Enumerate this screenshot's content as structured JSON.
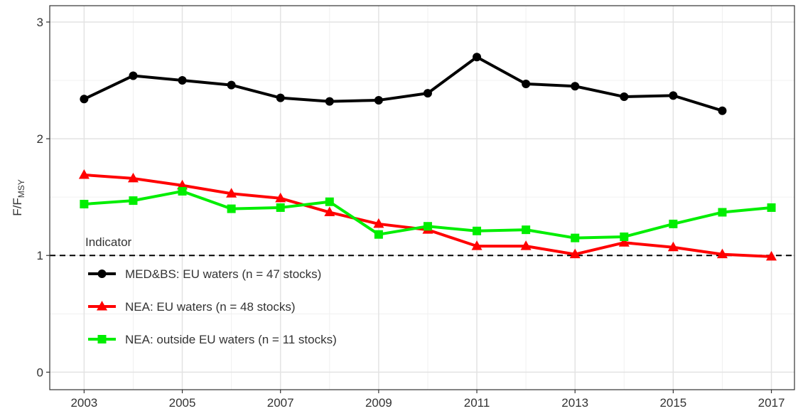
{
  "chart_data": {
    "type": "line",
    "ylabel": "F/F",
    "ylabel_sub": "MSY",
    "legend_title": "Indicator",
    "legend_position": "bottom-left-inside",
    "x": [
      2003,
      2004,
      2005,
      2006,
      2007,
      2008,
      2009,
      2010,
      2011,
      2012,
      2013,
      2014,
      2015,
      2016,
      2017
    ],
    "series": [
      {
        "name": "MED&BS: EU waters (n = 47 stocks)",
        "color": "#000000",
        "marker": "circle",
        "values": [
          2.34,
          2.54,
          2.5,
          2.46,
          2.35,
          2.32,
          2.33,
          2.39,
          2.7,
          2.47,
          2.45,
          2.36,
          2.37,
          2.24,
          null
        ]
      },
      {
        "name": "NEA: EU waters (n = 48 stocks)",
        "color": "#ff0000",
        "marker": "triangle",
        "values": [
          1.69,
          1.66,
          1.6,
          1.53,
          1.49,
          1.37,
          1.27,
          1.22,
          1.08,
          1.08,
          1.01,
          1.11,
          1.07,
          1.01,
          0.99
        ]
      },
      {
        "name": "NEA: outside EU waters (n = 11 stocks)",
        "color": "#00ee00",
        "marker": "square",
        "values": [
          1.44,
          1.47,
          1.55,
          1.4,
          1.41,
          1.46,
          1.18,
          1.25,
          1.21,
          1.22,
          1.15,
          1.16,
          1.27,
          1.37,
          1.41
        ]
      }
    ],
    "xlim": [
      2002.3,
      2017.47
    ],
    "xticks": [
      2003,
      2005,
      2007,
      2009,
      2011,
      2013,
      2015,
      2017
    ],
    "xminor_ticks": [
      2004,
      2006,
      2008,
      2010,
      2012,
      2014,
      2016
    ],
    "ylim": [
      -0.15,
      3.14
    ],
    "yticks": [
      0,
      1,
      2,
      3
    ],
    "yminor_ticks": [
      0.5,
      1.5,
      2.5
    ],
    "grid": true,
    "hline": 1
  }
}
